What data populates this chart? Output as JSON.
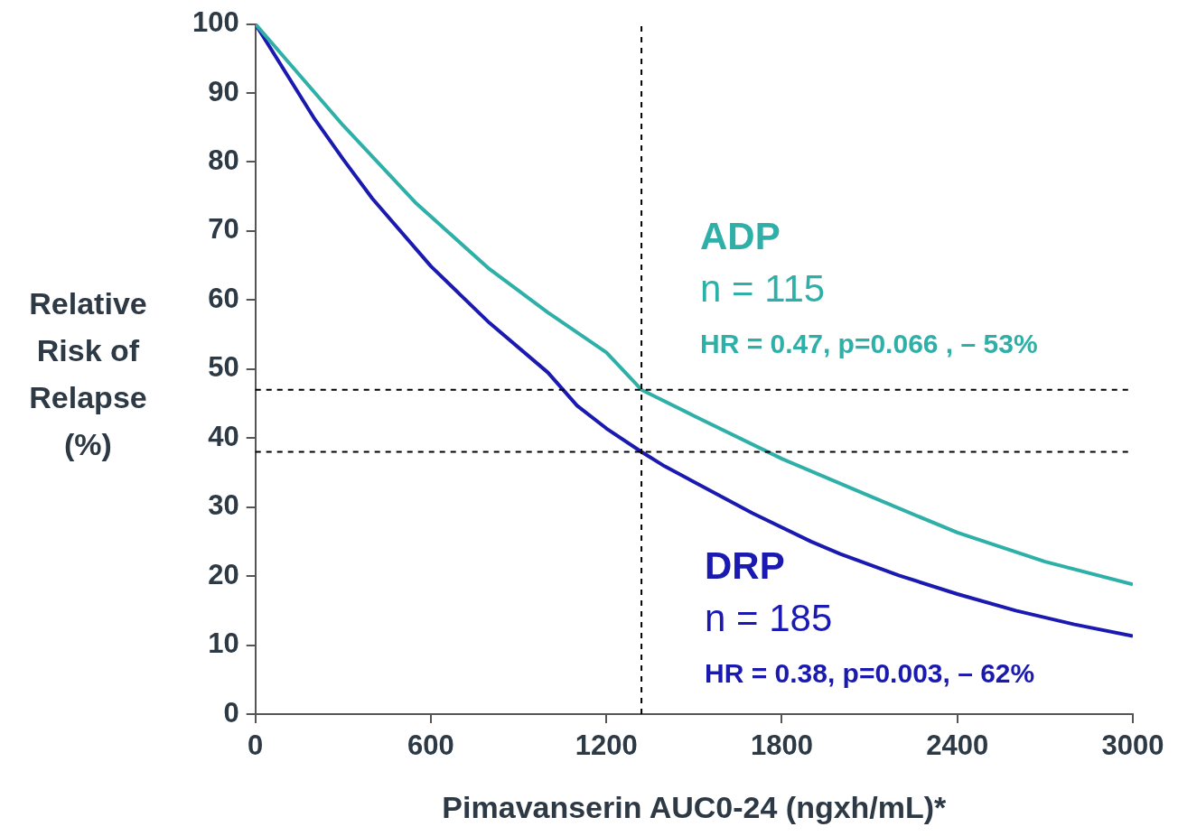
{
  "chart_data": {
    "type": "line",
    "xlabel": "Pimavanserin AUC0-24 (ngxh/mL)*",
    "ylabel": "Relative Risk of Relapse (%)",
    "xlim": [
      0,
      3000
    ],
    "xticks": [
      0,
      600,
      1200,
      1800,
      2400,
      3000
    ],
    "ylim": [
      0,
      100
    ],
    "yticks": [
      0,
      10,
      20,
      30,
      40,
      50,
      60,
      70,
      80,
      90,
      100
    ],
    "grid": false,
    "legend": false,
    "marker": "none",
    "line_style": "solid",
    "series": [
      {
        "name": "ADP",
        "color": "#2eb0a8",
        "x": [
          0,
          300,
          550,
          800,
          1000,
          1200,
          1320,
          1500,
          1800,
          2100,
          2400,
          2700,
          3000
        ],
        "values": [
          100,
          85.3,
          74,
          64.5,
          58.2,
          52.4,
          47,
          43.2,
          37,
          31.6,
          26.3,
          22.1,
          18.8
        ]
      },
      {
        "name": "DRP",
        "color": "#1a1ab0",
        "x": [
          0,
          200,
          300,
          400,
          600,
          800,
          1000,
          1100,
          1200,
          1320,
          1400,
          1700,
          1900,
          2000,
          2200,
          2400,
          2600,
          2800,
          3000
        ],
        "values": [
          100,
          86.4,
          80.4,
          74.7,
          64.9,
          56.7,
          49.5,
          44.7,
          41.4,
          38,
          35.9,
          29.1,
          25,
          23.2,
          20.1,
          17.4,
          15,
          13,
          11.3
        ]
      }
    ],
    "ref_lines": [
      {
        "axis": "x",
        "value": 1320,
        "color": "#000000",
        "line_style": "dashed"
      },
      {
        "axis": "y",
        "value": 47,
        "color": "#000000",
        "line_style": "dashed"
      },
      {
        "axis": "y",
        "value": 38,
        "color": "#000000",
        "line_style": "dashed"
      }
    ],
    "annotations": [
      "n = 115",
      "HR = 0.47, p=0.066 , – 53%",
      "n = 185",
      "HR = 0.38, p=0.003, – 62%"
    ]
  }
}
